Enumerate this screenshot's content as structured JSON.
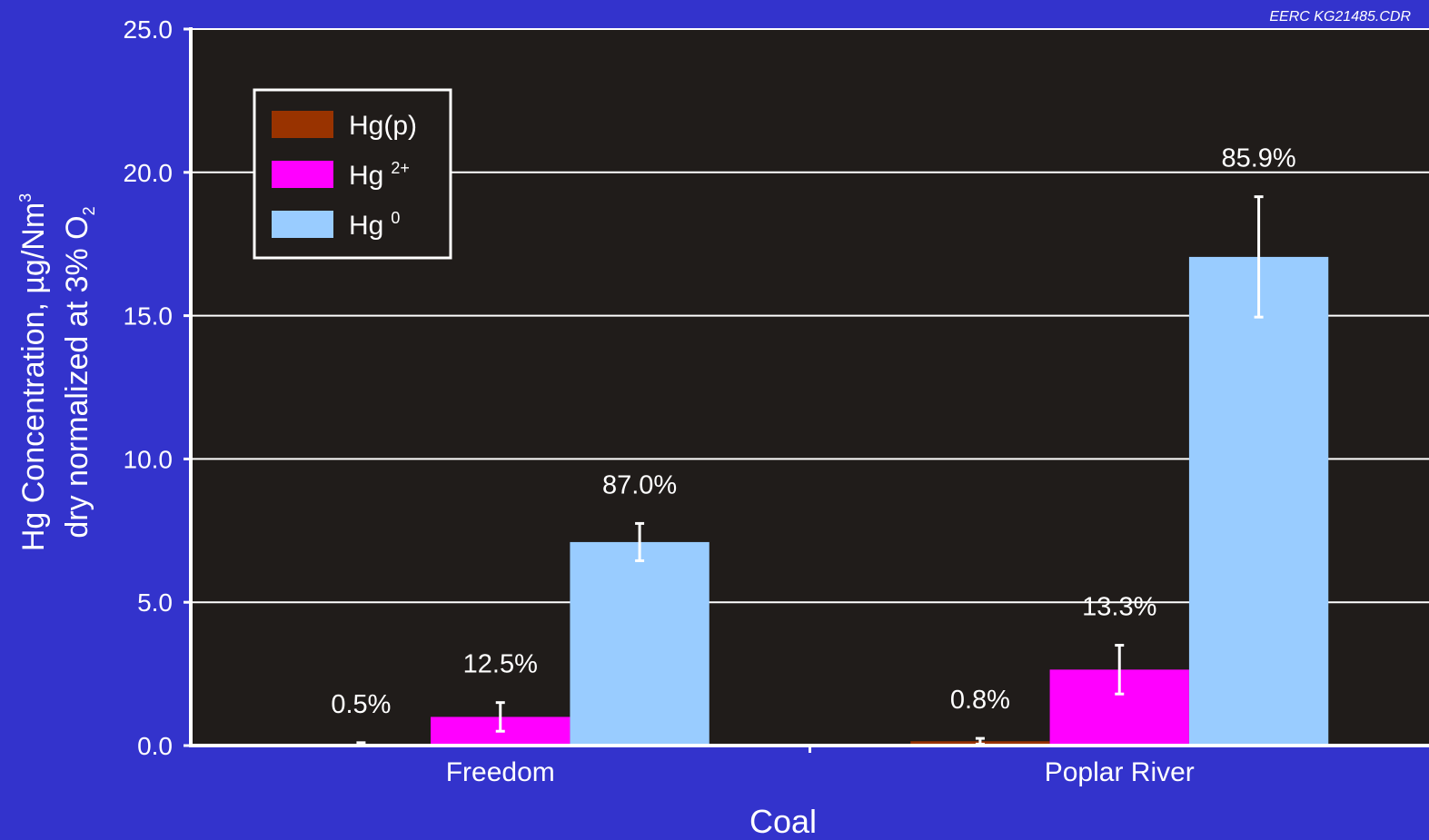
{
  "figure_ref": "EERC KG21485.CDR",
  "chart_data": {
    "type": "bar",
    "xlabel": "Coal",
    "ylabel_line1": "Hg Concentration, µg/Nm",
    "ylabel_line1_sup": "3",
    "ylabel_line2": "dry normalized at 3% O",
    "ylabel_line2_sub": "2",
    "ylim": [
      0,
      25
    ],
    "yticks": [
      "0.0",
      "5.0",
      "10.0",
      "15.0",
      "20.0",
      "25.0"
    ],
    "grid": true,
    "legend_position": "top-left",
    "categories": [
      "Freedom",
      "Poplar River"
    ],
    "series": [
      {
        "name": "Hg(p)",
        "base": "Hg",
        "script": "(p)",
        "color": "#993300",
        "values": [
          0.05,
          0.15
        ],
        "errors": [
          0.05,
          0.1
        ],
        "labels": [
          "0.5%",
          "0.8%"
        ]
      },
      {
        "name": "Hg2+",
        "base": "Hg",
        "script": "2+",
        "color": "#ff00ff",
        "values": [
          1.0,
          2.65
        ],
        "errors": [
          0.5,
          0.85
        ],
        "labels": [
          "12.5%",
          "13.3%"
        ]
      },
      {
        "name": "Hg0",
        "base": "Hg",
        "script": "0",
        "color": "#99ccff",
        "values": [
          7.1,
          17.05
        ],
        "errors": [
          0.65,
          2.1
        ],
        "labels": [
          "87.0%",
          "85.9%"
        ]
      }
    ]
  }
}
